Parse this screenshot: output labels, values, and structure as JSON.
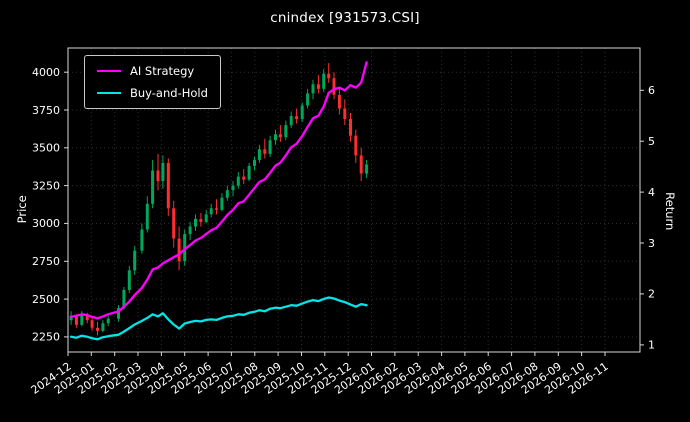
{
  "chart_data": {
    "type": "candlestick",
    "title": "cnindex [931573.CSI]",
    "ylabel_left": "Price",
    "ylabel_right": "Return",
    "price_ylim": [
      2150,
      4160
    ],
    "return_ylim": [
      0.86,
      6.83
    ],
    "price_ticks": [
      2250,
      2500,
      2750,
      3000,
      3250,
      3500,
      3750,
      4000
    ],
    "return_ticks": [
      1,
      2,
      3,
      4,
      5,
      6
    ],
    "x_ticks": [
      "2024-12",
      "2025-01",
      "2025-02",
      "2025-03",
      "2025-04",
      "2025-05",
      "2025-06",
      "2025-07",
      "2025-08",
      "2025-09",
      "2025-10",
      "2025-11",
      "2025-12",
      "2026-01",
      "2026-02",
      "2026-03",
      "2026-04",
      "2026-05",
      "2026-06",
      "2026-07",
      "2026-08",
      "2026-09",
      "2026-10",
      "2026-11"
    ],
    "colors": {
      "background": "#000000",
      "text": "#ffffff",
      "spine": "#d9d9d9",
      "grid": "#2e2e2e",
      "up": "#00a85a",
      "down": "#ff2e2e",
      "ai_strategy": "#ff00ff",
      "buy_and_hold": "#00e5e5"
    },
    "legend": {
      "position": "upper-left",
      "entries": [
        "AI Strategy",
        "Buy-and-Hold"
      ]
    },
    "candles": {
      "dates": [
        "2024-12-05",
        "2024-12-12",
        "2024-12-19",
        "2024-12-26",
        "2025-01-02",
        "2025-01-09",
        "2025-01-16",
        "2025-01-23",
        "2025-02-06",
        "2025-02-13",
        "2025-02-20",
        "2025-02-27",
        "2025-03-06",
        "2025-03-13",
        "2025-03-20",
        "2025-03-27",
        "2025-04-03",
        "2025-04-10",
        "2025-04-17",
        "2025-04-24",
        "2025-05-01",
        "2025-05-08",
        "2025-05-15",
        "2025-05-22",
        "2025-05-29",
        "2025-06-05",
        "2025-06-12",
        "2025-06-19",
        "2025-06-26",
        "2025-07-03",
        "2025-07-10",
        "2025-07-17",
        "2025-07-24",
        "2025-07-31",
        "2025-08-07",
        "2025-08-14",
        "2025-08-21",
        "2025-08-28",
        "2025-09-04",
        "2025-09-11",
        "2025-09-18",
        "2025-09-25",
        "2025-10-02",
        "2025-10-09",
        "2025-10-16",
        "2025-10-23",
        "2025-10-30",
        "2025-11-06",
        "2025-11-13",
        "2025-11-20",
        "2025-11-27",
        "2025-12-04",
        "2025-12-11",
        "2025-12-18",
        "2025-12-25"
      ],
      "open": [
        2360,
        2390,
        2330,
        2400,
        2360,
        2310,
        2290,
        2340,
        2370,
        2440,
        2560,
        2690,
        2820,
        2960,
        3130,
        3350,
        3280,
        3400,
        3100,
        2900,
        2750,
        2930,
        2980,
        3030,
        3010,
        3060,
        3100,
        3090,
        3170,
        3220,
        3250,
        3310,
        3290,
        3380,
        3420,
        3490,
        3460,
        3550,
        3590,
        3570,
        3650,
        3710,
        3690,
        3780,
        3860,
        3920,
        3890,
        3990,
        3960,
        3850,
        3760,
        3690,
        3580,
        3450,
        3330
      ],
      "high": [
        2420,
        2400,
        2420,
        2410,
        2380,
        2350,
        2360,
        2390,
        2460,
        2580,
        2720,
        2850,
        3000,
        3180,
        3420,
        3460,
        3450,
        3430,
        3150,
        2980,
        2960,
        3010,
        3060,
        3070,
        3090,
        3130,
        3160,
        3200,
        3250,
        3280,
        3340,
        3360,
        3400,
        3440,
        3520,
        3560,
        3580,
        3620,
        3650,
        3680,
        3740,
        3760,
        3800,
        3890,
        3950,
        3980,
        4020,
        4060,
        4000,
        3900,
        3820,
        3730,
        3620,
        3500,
        3420
      ],
      "low": [
        2330,
        2310,
        2320,
        2340,
        2290,
        2260,
        2280,
        2320,
        2350,
        2430,
        2540,
        2660,
        2800,
        2940,
        3100,
        3220,
        3230,
        3050,
        2840,
        2690,
        2720,
        2890,
        2950,
        2980,
        3000,
        3040,
        3060,
        3080,
        3150,
        3180,
        3230,
        3260,
        3280,
        3350,
        3400,
        3430,
        3440,
        3520,
        3540,
        3550,
        3630,
        3660,
        3670,
        3760,
        3820,
        3860,
        3870,
        3930,
        3820,
        3720,
        3650,
        3540,
        3400,
        3280,
        3300
      ],
      "close": [
        2390,
        2330,
        2400,
        2360,
        2310,
        2290,
        2340,
        2370,
        2440,
        2560,
        2690,
        2820,
        2960,
        3130,
        3350,
        3280,
        3400,
        3100,
        2900,
        2750,
        2930,
        2980,
        3030,
        3010,
        3060,
        3100,
        3090,
        3170,
        3220,
        3250,
        3310,
        3290,
        3380,
        3420,
        3490,
        3460,
        3550,
        3590,
        3570,
        3650,
        3710,
        3690,
        3780,
        3860,
        3920,
        3890,
        3990,
        3960,
        3850,
        3760,
        3690,
        3580,
        3450,
        3330,
        3390
      ]
    },
    "series": [
      {
        "name": "AI Strategy",
        "color": "#ff00ff",
        "axis": "return",
        "values": [
          1.55,
          1.57,
          1.6,
          1.58,
          1.55,
          1.52,
          1.56,
          1.6,
          1.66,
          1.75,
          1.85,
          1.98,
          2.12,
          2.28,
          2.48,
          2.52,
          2.6,
          2.66,
          2.72,
          2.78,
          2.88,
          2.96,
          3.05,
          3.1,
          3.18,
          3.25,
          3.3,
          3.42,
          3.55,
          3.65,
          3.78,
          3.82,
          3.95,
          4.08,
          4.2,
          4.25,
          4.38,
          4.52,
          4.58,
          4.72,
          4.88,
          4.95,
          5.1,
          5.28,
          5.45,
          5.5,
          5.68,
          5.95,
          6.02,
          6.05,
          6.0,
          6.1,
          6.05,
          6.15,
          6.55
        ]
      },
      {
        "name": "Buy-and-Hold",
        "color": "#00e5e5",
        "axis": "return",
        "values": [
          1.16,
          1.14,
          1.18,
          1.16,
          1.13,
          1.11,
          1.15,
          1.17,
          1.2,
          1.26,
          1.33,
          1.4,
          1.47,
          1.53,
          1.6,
          1.56,
          1.62,
          1.5,
          1.4,
          1.32,
          1.42,
          1.45,
          1.47,
          1.46,
          1.49,
          1.5,
          1.49,
          1.53,
          1.56,
          1.57,
          1.6,
          1.59,
          1.63,
          1.65,
          1.68,
          1.66,
          1.71,
          1.73,
          1.72,
          1.75,
          1.78,
          1.77,
          1.81,
          1.85,
          1.88,
          1.86,
          1.9,
          1.93,
          1.91,
          1.87,
          1.84,
          1.79,
          1.75,
          1.8,
          1.78
        ]
      }
    ]
  }
}
